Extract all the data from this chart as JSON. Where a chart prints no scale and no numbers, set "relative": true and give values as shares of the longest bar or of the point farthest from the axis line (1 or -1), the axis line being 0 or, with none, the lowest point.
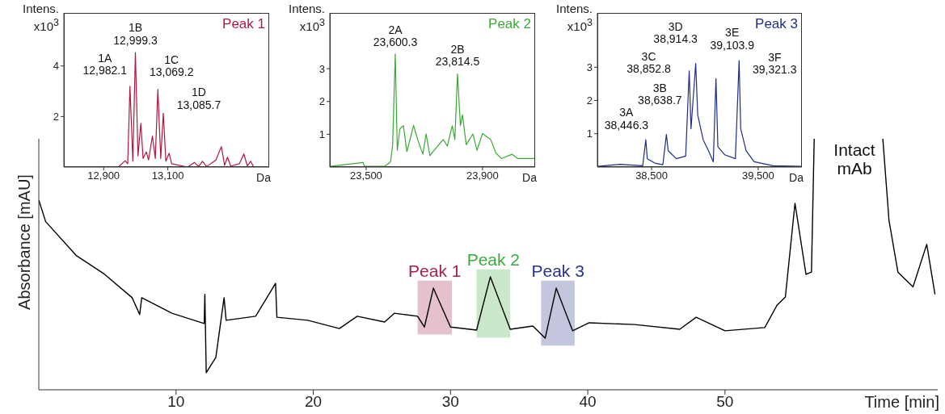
{
  "chart_data": [
    {
      "type": "line",
      "title": "Peak 1",
      "xlabel": "Da",
      "ylabel": "Intens. x10$^{3}$",
      "color": "#b0183f",
      "marker": "none",
      "xlim": [
        12776,
        13416
      ],
      "xticks": [
        {
          "value": 12900,
          "label": "12,900"
        },
        {
          "value": 13100,
          "label": "13,100"
        }
      ],
      "ylim": [
        0,
        6.1
      ],
      "yticks": [
        2,
        4
      ],
      "x": [
        12777,
        12946,
        12967,
        12975,
        12982,
        12991,
        12999,
        13007,
        13016,
        13023,
        13033,
        13040,
        13052,
        13061,
        13069,
        13078,
        13086,
        13094,
        13104,
        13112,
        13162,
        13183,
        13196,
        13208,
        13221,
        13250,
        13267,
        13277,
        13286,
        13296,
        13323,
        13337,
        13348,
        13358,
        13367,
        13415
      ],
      "values": [
        0,
        0,
        0.25,
        0.13,
        3.2,
        0.23,
        4.53,
        0.44,
        1.73,
        0.34,
        0.6,
        0.28,
        1.23,
        0.34,
        3.07,
        0.34,
        2.13,
        0.23,
        0.55,
        0.13,
        0,
        0.18,
        0.02,
        0.23,
        0.02,
        0.28,
        0.81,
        0.07,
        0.39,
        0.04,
        0.13,
        0.52,
        0.04,
        0.23,
        0.02,
        0
      ],
      "annotations": [
        {
          "text": "1A\n12,982.1",
          "x": 12982,
          "y": 3.2
        },
        {
          "text": "1B\n12,999.3",
          "x": 12999,
          "y": 4.53
        },
        {
          "text": "1C\n13,069.2",
          "x": 13069,
          "y": 3.07
        },
        {
          "text": "1D\n13,085.7",
          "x": 13086,
          "y": 2.13
        }
      ]
    },
    {
      "type": "line",
      "title": "Peak 2",
      "xlabel": "Da",
      "ylabel": "Intens. x10$^{3}$",
      "color": "#3aaa35",
      "marker": "none",
      "xlim": [
        23375,
        24081
      ],
      "xticks": [
        {
          "value": 23500,
          "label": "23,500"
        },
        {
          "value": 23900,
          "label": "23,900"
        }
      ],
      "ylim": [
        0,
        4.7
      ],
      "yticks": [
        1,
        2,
        3
      ],
      "x": [
        23376,
        23489,
        23495,
        23565,
        23584,
        23591,
        23600,
        23607,
        23616,
        23628,
        23640,
        23663,
        23677,
        23695,
        23706,
        23719,
        23742,
        23765,
        23779,
        23796,
        23805,
        23814,
        23824,
        23831,
        23844,
        23867,
        23881,
        23900,
        23928,
        23946,
        23965,
        24002,
        24021,
        24080
      ],
      "values": [
        0.02,
        0.14,
        0.02,
        0.03,
        0.16,
        0.68,
        3.45,
        0.51,
        1.17,
        1.26,
        0.47,
        1.27,
        0.84,
        0.39,
        1.01,
        0.35,
        0.6,
        0.84,
        0.64,
        1.26,
        0.84,
        2.84,
        1.26,
        1.59,
        0.68,
        1.01,
        0.51,
        1.02,
        0.84,
        0.43,
        0.26,
        0.39,
        0.26,
        0.26
      ],
      "annotations": [
        {
          "text": "2A\n23,600.3",
          "x": 23600,
          "y": 3.45
        },
        {
          "text": "2B\n23,814.5",
          "x": 23814,
          "y": 2.84
        }
      ]
    },
    {
      "type": "line",
      "title": "Peak 3",
      "xlabel": "Da",
      "ylabel": "Intens. x10$^{3}$",
      "color": "#1f2d86",
      "marker": "none",
      "xlim": [
        37992,
        39910
      ],
      "xticks": [
        {
          "value": 38500,
          "label": "38,500"
        },
        {
          "value": 39500,
          "label": "39,500"
        }
      ],
      "ylim": [
        0,
        4.63
      ],
      "yticks": [
        1,
        2,
        3
      ],
      "x": [
        37996,
        38203,
        38417,
        38446,
        38460,
        38530,
        38606,
        38639,
        38656,
        38732,
        38820,
        38853,
        38870,
        38914,
        38933,
        38984,
        39034,
        39079,
        39104,
        39122,
        39185,
        39286,
        39321,
        39336,
        39387,
        39462,
        39639,
        39903
      ],
      "values": [
        0.02,
        0.08,
        0.04,
        0.82,
        0.25,
        0.12,
        0.07,
        0.98,
        0.49,
        0.25,
        0.33,
        2.89,
        1.15,
        3.11,
        1.56,
        0.82,
        0.49,
        0.16,
        2.66,
        0.61,
        0.37,
        0.25,
        3.2,
        1.15,
        0.49,
        0.16,
        0.04,
        0.02
      ],
      "annotations": [
        {
          "text": "3A\n38,446.3",
          "x": 38446,
          "y": 0.82
        },
        {
          "text": "3B\n38,638.7",
          "x": 38639,
          "y": 0.98
        },
        {
          "text": "3C\n38,852.8",
          "x": 38853,
          "y": 2.89
        },
        {
          "text": "3D\n38,914.3",
          "x": 38914,
          "y": 3.11
        },
        {
          "text": "3E\n39,103.9",
          "x": 39104,
          "y": 2.66
        },
        {
          "text": "3F\n39,321.3",
          "x": 39321,
          "y": 3.2
        }
      ]
    },
    {
      "type": "line",
      "relative": true,
      "xlabel": "Time [min]",
      "ylabel": "Absorbance [mAU]",
      "color": "#000000",
      "marker": "none",
      "xlim": [
        0,
        65.5
      ],
      "xticks": [
        10,
        20,
        30,
        40,
        50
      ],
      "x": [
        0,
        0.5,
        2.75,
        4.8,
        6.8,
        7.35,
        7.5,
        9.7,
        12.05,
        12.1,
        12.2,
        12.9,
        13.5,
        13.65,
        15.8,
        17.25,
        17.35,
        19.6,
        21.9,
        23.2,
        25.2,
        25.9,
        27.6,
        28.1,
        28.75,
        30,
        31.9,
        32.9,
        34.35,
        36,
        36.9,
        37.7,
        38.9,
        40.1,
        43.4,
        46.7,
        47.9,
        50,
        52.9,
        53.8,
        54.4,
        55.1,
        55.9,
        56.3,
        56.5,
        56.6,
        61.5,
        61.95,
        62.6,
        63.7,
        64.7,
        65.3
      ],
      "values": [
        0.756,
        0.67,
        0.534,
        0.46,
        0.367,
        0.3,
        0.367,
        0.305,
        0.264,
        0.38,
        0.068,
        0.129,
        0.367,
        0.277,
        0.293,
        0.424,
        0.289,
        0.277,
        0.244,
        0.293,
        0.27,
        0.305,
        0.293,
        0.25,
        0.405,
        0.25,
        0.238,
        0.45,
        0.241,
        0.254,
        0.206,
        0.405,
        0.235,
        0.267,
        0.26,
        0.241,
        0.289,
        0.235,
        0.248,
        0.338,
        0.37,
        0.743,
        0.46,
        0.469,
        1.0,
        null,
        1.0,
        0.675,
        0.469,
        0.41,
        0.58,
        0.38
      ],
      "bands": [
        {
          "axis": "x",
          "from": 27.6,
          "to": 30.1,
          "label": "Peak 1",
          "color": "#a3224e"
        },
        {
          "axis": "x",
          "from": 31.9,
          "to": 34.35,
          "label": "Peak 2",
          "color": "#3daa3d"
        },
        {
          "axis": "x",
          "from": 36.6,
          "to": 39.05,
          "label": "Peak 3",
          "color": "#28338a"
        }
      ],
      "annotations": [
        "Intact\nmAb"
      ]
    }
  ]
}
